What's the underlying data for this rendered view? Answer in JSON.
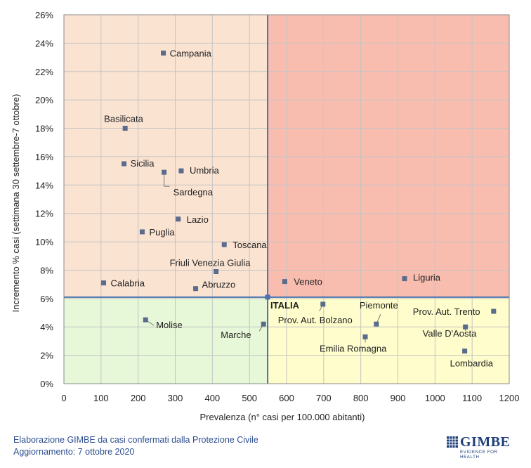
{
  "chart_data": {
    "type": "scatter",
    "title": "",
    "xlabel": "Prevalenza  (n° casi per 100.000 abitanti)",
    "ylabel": "Incremento %  casi (settimana 30 settembre-7 ottobre)",
    "xlim": [
      0,
      1200
    ],
    "ylim": [
      0,
      26
    ],
    "x_ticks": [
      0,
      100,
      200,
      300,
      400,
      500,
      600,
      700,
      800,
      900,
      1000,
      1100,
      1200
    ],
    "x_tick_labels": [
      "0",
      "100",
      "200",
      "300",
      "400",
      "500",
      "600",
      "700",
      "800",
      "900",
      "1000",
      "1100",
      "1200"
    ],
    "y_ticks": [
      0,
      2,
      4,
      6,
      8,
      10,
      12,
      14,
      16,
      18,
      20,
      22,
      24,
      26
    ],
    "y_tick_labels": [
      "0%",
      "2%",
      "4%",
      "6%",
      "8%",
      "10%",
      "12%",
      "14%",
      "16%",
      "18%",
      "20%",
      "22%",
      "24%",
      "26%"
    ],
    "grid": true,
    "reference_lines": {
      "x": 549,
      "y": 6.1
    },
    "quadrant_colors": {
      "top_left": "#fbe3d2",
      "top_right": "#f9bdb0",
      "bottom_left": "#e6f8d8",
      "bottom_right": "#fefdcb"
    },
    "line_color": "#4a72b0",
    "marker_color": "#5a6b8c",
    "points": [
      {
        "label": "Campania",
        "x": 268,
        "y": 23.3
      },
      {
        "label": "Basilicata",
        "x": 165,
        "y": 18.0
      },
      {
        "label": "Sicilia",
        "x": 162,
        "y": 15.5
      },
      {
        "label": "Sardegna",
        "x": 270,
        "y": 14.9
      },
      {
        "label": "Umbria",
        "x": 316,
        "y": 15.0
      },
      {
        "label": "Lazio",
        "x": 308,
        "y": 11.6
      },
      {
        "label": "Puglia",
        "x": 211,
        "y": 10.7
      },
      {
        "label": "Toscana",
        "x": 432,
        "y": 9.8
      },
      {
        "label": "Friuli Venezia Giulia",
        "x": 410,
        "y": 7.9
      },
      {
        "label": "Calabria",
        "x": 107,
        "y": 7.1
      },
      {
        "label": "Abruzzo",
        "x": 355,
        "y": 6.7
      },
      {
        "label": "Veneto",
        "x": 595,
        "y": 7.2
      },
      {
        "label": "Liguria",
        "x": 918,
        "y": 7.4
      },
      {
        "label": "ITALIA",
        "x": 549,
        "y": 6.1
      },
      {
        "label": "Molise",
        "x": 220,
        "y": 4.5
      },
      {
        "label": "Marche",
        "x": 538,
        "y": 4.2
      },
      {
        "label": "Prov. Aut. Bolzano",
        "x": 698,
        "y": 5.6
      },
      {
        "label": "Piemonte",
        "x": 842,
        "y": 4.2
      },
      {
        "label": "Emilia Romagna",
        "x": 812,
        "y": 3.3
      },
      {
        "label": "Prov. Aut. Trento",
        "x": 1158,
        "y": 5.1
      },
      {
        "label": "Valle D'Aosta",
        "x": 1082,
        "y": 4.0
      },
      {
        "label": "Lombardia",
        "x": 1080,
        "y": 2.3
      }
    ]
  },
  "footer": {
    "line1": "Elaborazione GIMBE da casi confermati dalla Protezione Civile",
    "line2": "Aggiornamento: 7 ottobre 2020"
  },
  "logo": {
    "name": "GIMBE",
    "tagline": "EVIDENCE FOR HEALTH"
  }
}
